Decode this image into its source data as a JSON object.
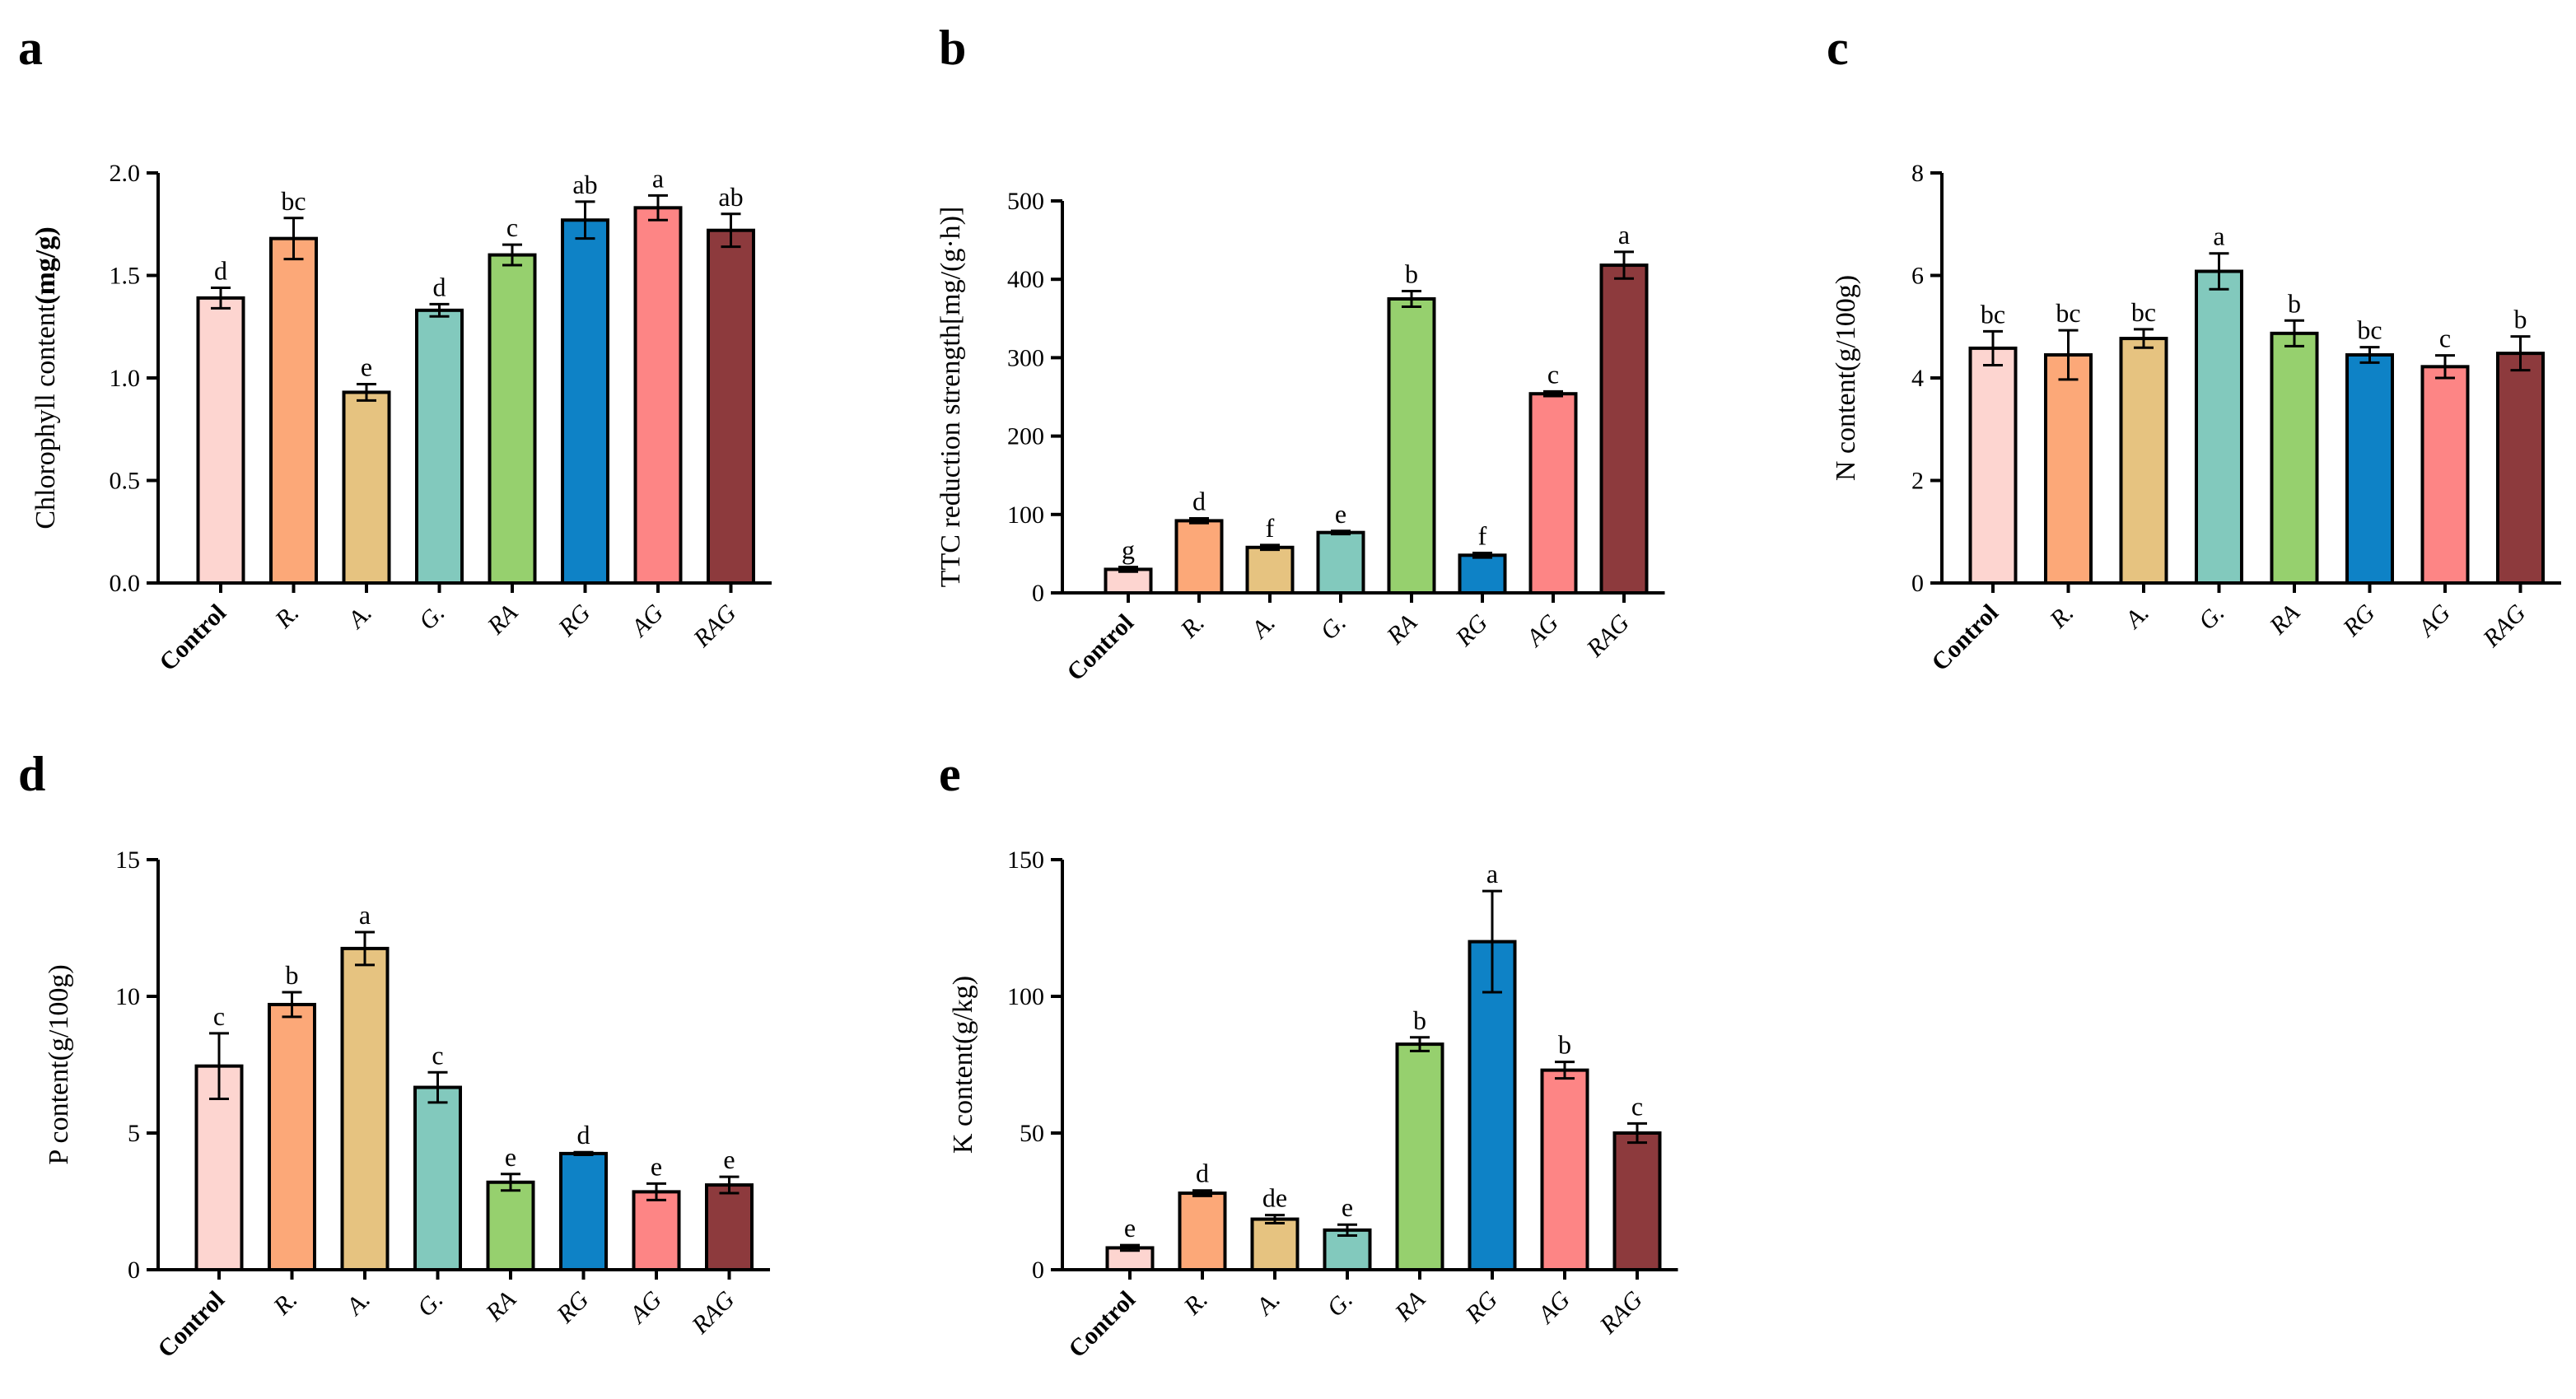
{
  "colors": [
    "#fdd5d0",
    "#fca878",
    "#e6c380",
    "#82c9bd",
    "#96d06e",
    "#0e82c6",
    "#fd8585",
    "#8d3a3d"
  ],
  "chart_data": [
    {
      "panel": "a",
      "type": "bar",
      "categories": [
        "Control",
        "R.",
        "A.",
        "G.",
        "RA",
        "RG",
        "AG",
        "RAG"
      ],
      "values": [
        1.39,
        1.68,
        0.93,
        1.33,
        1.6,
        1.77,
        1.83,
        1.72
      ],
      "errors": [
        0.05,
        0.1,
        0.04,
        0.03,
        0.05,
        0.09,
        0.06,
        0.08
      ],
      "letters": [
        "d",
        "bc",
        "e",
        "d",
        "c",
        "ab",
        "a",
        "ab"
      ],
      "ylabel_main": "Chlorophyll content",
      "ylabel_unit": "(mg/g)",
      "ylim": [
        0,
        2.0
      ],
      "yticks": [
        "0.0",
        "0.5",
        "1.0",
        "1.5",
        "2.0"
      ],
      "title": "",
      "xlabel": ""
    },
    {
      "panel": "b",
      "type": "bar",
      "categories": [
        "Control",
        "R.",
        "A.",
        "G.",
        "RA",
        "RG",
        "AG",
        "RAG"
      ],
      "values": [
        30,
        92,
        58,
        77,
        375,
        48,
        254,
        418
      ],
      "errors": [
        3,
        3,
        3,
        2,
        10,
        3,
        3,
        17
      ],
      "letters": [
        "g",
        "d",
        "f",
        "e",
        "b",
        "f",
        "c",
        "a"
      ],
      "ylabel_main": "TTC reduction strength[mg/(g·h)]",
      "ylabel_unit": "",
      "ylim": [
        0,
        500
      ],
      "yticks": [
        "0",
        "100",
        "200",
        "300",
        "400",
        "500"
      ],
      "title": "",
      "xlabel": ""
    },
    {
      "panel": "c",
      "type": "bar",
      "categories": [
        "Control",
        "R.",
        "A.",
        "G.",
        "RA",
        "RG",
        "AG",
        "RAG"
      ],
      "values": [
        4.58,
        4.45,
        4.77,
        6.08,
        4.87,
        4.45,
        4.22,
        4.48
      ],
      "errors": [
        0.33,
        0.48,
        0.18,
        0.35,
        0.25,
        0.15,
        0.22,
        0.33
      ],
      "letters": [
        "bc",
        "bc",
        "bc",
        "a",
        "b",
        "bc",
        "c",
        "b"
      ],
      "ylabel_main": "N content(g/100g)",
      "ylabel_unit": "",
      "ylim": [
        0,
        8
      ],
      "yticks": [
        "0",
        "2",
        "4",
        "6",
        "8"
      ],
      "title": "",
      "xlabel": ""
    },
    {
      "panel": "d",
      "type": "bar",
      "categories": [
        "Control",
        "R.",
        "A.",
        "G.",
        "RA",
        "RG",
        "AG",
        "RAG"
      ],
      "values": [
        7.45,
        9.7,
        11.75,
        6.67,
        3.2,
        4.25,
        2.85,
        3.1
      ],
      "errors": [
        1.2,
        0.45,
        0.6,
        0.55,
        0.3,
        0.05,
        0.3,
        0.3
      ],
      "letters": [
        "c",
        "b",
        "a",
        "c",
        "e",
        "d",
        "e",
        "e"
      ],
      "ylabel_main": "P content(g/100g)",
      "ylabel_unit": "",
      "ylim": [
        0,
        15
      ],
      "yticks": [
        "0",
        "5",
        "10",
        "15"
      ],
      "title": "",
      "xlabel": ""
    },
    {
      "panel": "e",
      "type": "bar",
      "categories": [
        "Control",
        "R.",
        "A.",
        "G.",
        "RA",
        "RG",
        "AG",
        "RAG"
      ],
      "values": [
        8,
        28,
        18.5,
        14.5,
        82.5,
        120,
        73,
        50
      ],
      "errors": [
        1,
        1,
        1.5,
        2,
        2.5,
        18.5,
        3,
        3.5
      ],
      "letters": [
        "e",
        "d",
        "de",
        "e",
        "b",
        "a",
        "b",
        "c"
      ],
      "ylabel_main": "K content(g/kg)",
      "ylabel_unit": "",
      "ylim": [
        0,
        150
      ],
      "yticks": [
        "0",
        "50",
        "100",
        "150"
      ],
      "title": "",
      "xlabel": ""
    }
  ]
}
